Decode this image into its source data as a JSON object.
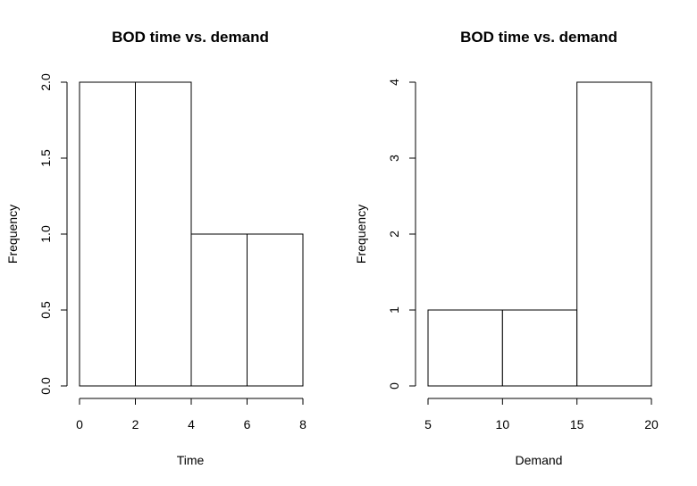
{
  "chart_data": [
    {
      "type": "bar",
      "title": "BOD time vs. demand",
      "xlabel": "Time",
      "ylabel": "Frequency",
      "bins": [
        [
          0,
          2
        ],
        [
          2,
          4
        ],
        [
          4,
          6
        ],
        [
          6,
          8
        ]
      ],
      "values": [
        2,
        2,
        1,
        1
      ],
      "xlim": [
        0,
        8
      ],
      "ylim": [
        0,
        2
      ],
      "xticks": [
        0,
        2,
        4,
        6,
        8
      ],
      "yticks": [
        0,
        0.5,
        1,
        1.5,
        2
      ],
      "xtick_labels": [
        "0",
        "2",
        "4",
        "6",
        "8"
      ],
      "ytick_labels": [
        "0.0",
        "0.5",
        "1.0",
        "1.5",
        "2.0"
      ],
      "grid": false,
      "legend": "none",
      "bar_fill": "#ffffff",
      "bar_stroke": "#000000"
    },
    {
      "type": "bar",
      "title": "BOD time vs. demand",
      "xlabel": "Demand",
      "ylabel": "Frequency",
      "bins": [
        [
          5,
          10
        ],
        [
          10,
          15
        ],
        [
          15,
          20
        ]
      ],
      "values": [
        1,
        1,
        4
      ],
      "xlim": [
        5,
        20
      ],
      "ylim": [
        0,
        4
      ],
      "xticks": [
        5,
        10,
        15,
        20
      ],
      "yticks": [
        0,
        1,
        2,
        3,
        4
      ],
      "xtick_labels": [
        "5",
        "10",
        "15",
        "20"
      ],
      "ytick_labels": [
        "0",
        "1",
        "2",
        "3",
        "4"
      ],
      "grid": false,
      "legend": "none",
      "bar_fill": "#ffffff",
      "bar_stroke": "#000000"
    }
  ]
}
